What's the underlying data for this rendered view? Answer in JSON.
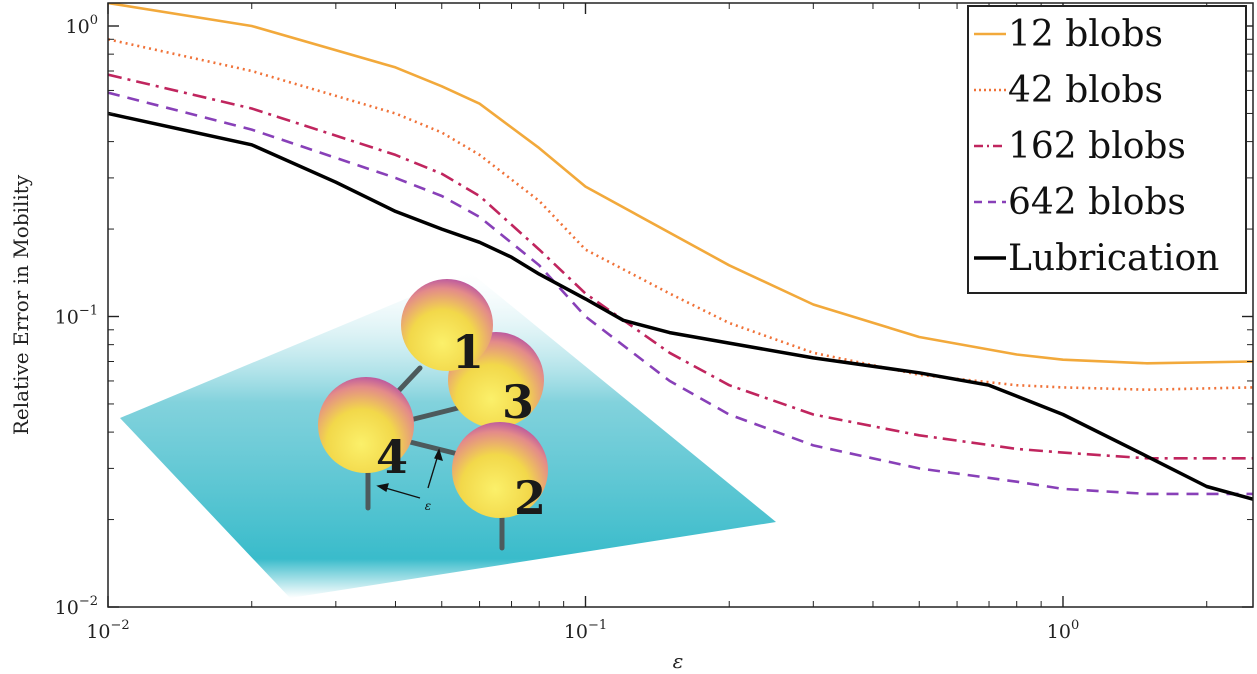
{
  "chart_data": {
    "type": "line",
    "xscale": "log",
    "yscale": "log",
    "xlim": [
      0.01,
      2.5
    ],
    "ylim": [
      0.01,
      1.2
    ],
    "xlabel": "ε",
    "ylabel": "Relative Error in Mobility",
    "xticks": [
      {
        "value": 0.01,
        "base": "10",
        "exp": "−2"
      },
      {
        "value": 0.1,
        "base": "10",
        "exp": "−1"
      },
      {
        "value": 1,
        "base": "10",
        "exp": "0"
      }
    ],
    "yticks": [
      {
        "value": 0.01,
        "base": "10",
        "exp": "−2"
      },
      {
        "value": 0.1,
        "base": "10",
        "exp": "−1"
      },
      {
        "value": 1,
        "base": "10",
        "exp": "0"
      }
    ],
    "legend_position": "top-right",
    "series": [
      {
        "name": "12 blobs",
        "color": "#f2a93b",
        "dash": "solid",
        "points": [
          [
            0.01,
            1.2
          ],
          [
            0.02,
            1.0
          ],
          [
            0.04,
            0.72
          ],
          [
            0.05,
            0.62
          ],
          [
            0.06,
            0.54
          ],
          [
            0.08,
            0.38
          ],
          [
            0.1,
            0.28
          ],
          [
            0.2,
            0.15
          ],
          [
            0.3,
            0.11
          ],
          [
            0.5,
            0.085
          ],
          [
            0.8,
            0.074
          ],
          [
            1,
            0.071
          ],
          [
            1.5,
            0.069
          ],
          [
            2.5,
            0.07
          ]
        ]
      },
      {
        "name": "42 blobs",
        "color": "#f07238",
        "dash": "dotted",
        "points": [
          [
            0.01,
            0.9
          ],
          [
            0.02,
            0.7
          ],
          [
            0.04,
            0.5
          ],
          [
            0.05,
            0.43
          ],
          [
            0.06,
            0.36
          ],
          [
            0.08,
            0.25
          ],
          [
            0.1,
            0.17
          ],
          [
            0.15,
            0.12
          ],
          [
            0.2,
            0.095
          ],
          [
            0.3,
            0.075
          ],
          [
            0.5,
            0.063
          ],
          [
            0.8,
            0.058
          ],
          [
            1,
            0.057
          ],
          [
            1.5,
            0.056
          ],
          [
            2.5,
            0.057
          ]
        ]
      },
      {
        "name": "162 blobs",
        "color": "#c0255e",
        "dash": "dashdot",
        "points": [
          [
            0.01,
            0.68
          ],
          [
            0.02,
            0.52
          ],
          [
            0.04,
            0.36
          ],
          [
            0.05,
            0.31
          ],
          [
            0.06,
            0.26
          ],
          [
            0.08,
            0.17
          ],
          [
            0.1,
            0.12
          ],
          [
            0.15,
            0.075
          ],
          [
            0.2,
            0.058
          ],
          [
            0.3,
            0.046
          ],
          [
            0.5,
            0.039
          ],
          [
            0.8,
            0.035
          ],
          [
            1,
            0.034
          ],
          [
            1.5,
            0.0325
          ],
          [
            2.5,
            0.0325
          ]
        ]
      },
      {
        "name": "642 blobs",
        "color": "#8840b8",
        "dash": "dashed",
        "points": [
          [
            0.01,
            0.59
          ],
          [
            0.02,
            0.44
          ],
          [
            0.04,
            0.3
          ],
          [
            0.05,
            0.26
          ],
          [
            0.06,
            0.22
          ],
          [
            0.08,
            0.15
          ],
          [
            0.1,
            0.1
          ],
          [
            0.15,
            0.06
          ],
          [
            0.2,
            0.046
          ],
          [
            0.3,
            0.036
          ],
          [
            0.5,
            0.03
          ],
          [
            0.8,
            0.027
          ],
          [
            1,
            0.0255
          ],
          [
            1.5,
            0.0245
          ],
          [
            2.5,
            0.0245
          ]
        ]
      },
      {
        "name": "Lubrication",
        "color": "#000000",
        "dash": "solid",
        "points": [
          [
            0.01,
            0.5
          ],
          [
            0.02,
            0.39
          ],
          [
            0.03,
            0.29
          ],
          [
            0.04,
            0.23
          ],
          [
            0.05,
            0.2
          ],
          [
            0.06,
            0.18
          ],
          [
            0.07,
            0.16
          ],
          [
            0.08,
            0.14
          ],
          [
            0.1,
            0.115
          ],
          [
            0.12,
            0.097
          ],
          [
            0.15,
            0.088
          ],
          [
            0.2,
            0.081
          ],
          [
            0.3,
            0.072
          ],
          [
            0.5,
            0.064
          ],
          [
            0.7,
            0.058
          ],
          [
            1,
            0.046
          ],
          [
            1.5,
            0.033
          ],
          [
            2,
            0.026
          ],
          [
            2.5,
            0.0235
          ]
        ]
      }
    ]
  },
  "inset": {
    "ball_labels": [
      "1",
      "3",
      "4",
      "2"
    ],
    "annotation": "ε",
    "colors": {
      "plane": "#2fb8c8",
      "ball_top": "#a03ab0",
      "ball_bottom": "#f5ea4a"
    }
  }
}
